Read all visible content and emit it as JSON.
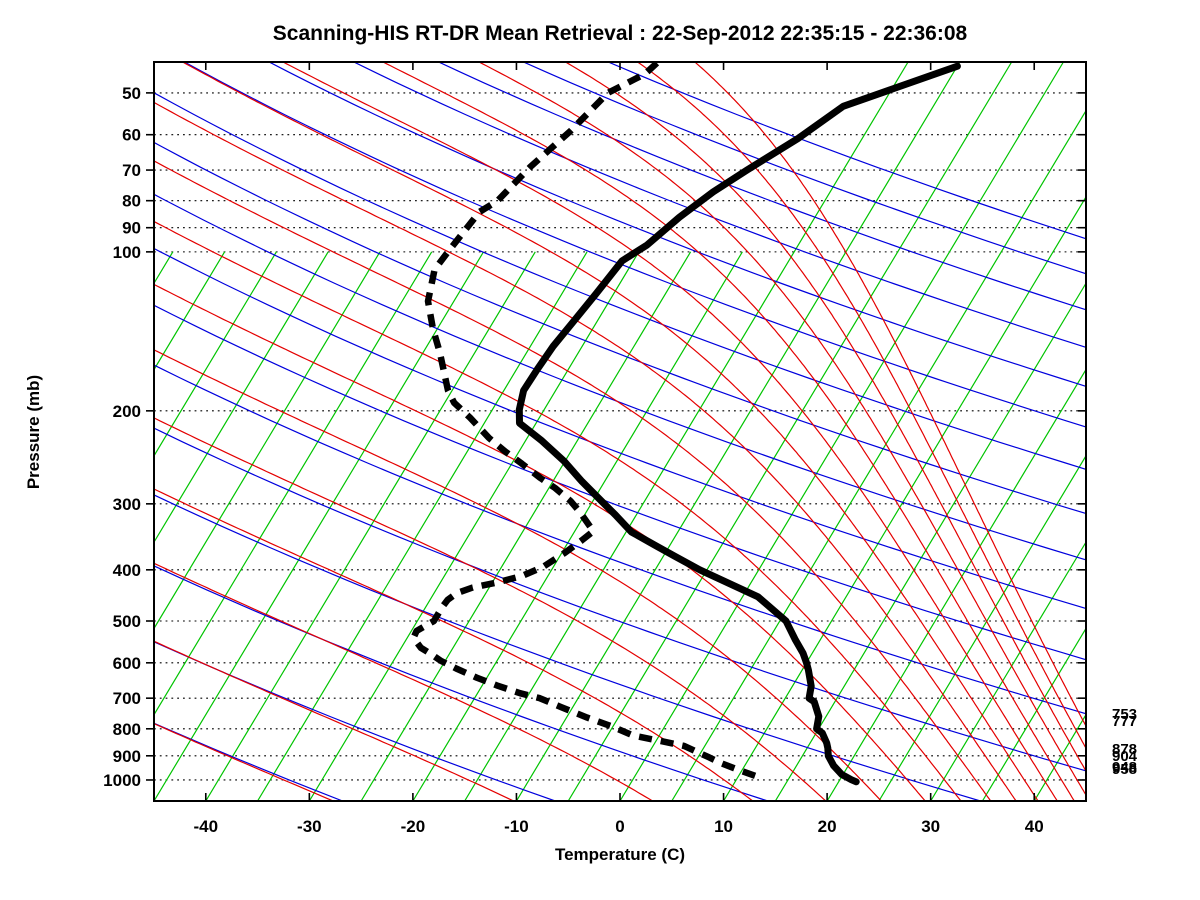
{
  "chart": {
    "title": "Scanning-HIS RT-DR Mean Retrieval : 22-Sep-2012 22:35:15 - 22:36:08",
    "xlabel": "Temperature (C)",
    "ylabel": "Pressure (mb)"
  },
  "chart_data": {
    "type": "line",
    "subtype": "skewt-log-p",
    "title": "Scanning-HIS RT-DR Mean Retrieval : 22-Sep-2012 22:35:15 - 22:36:08",
    "xlabel": "Temperature (C)",
    "ylabel": "Pressure (mb)",
    "xlim": [
      -45,
      45
    ],
    "pressure_top_mb": 43.7,
    "pressure_bottom_mb": 1096,
    "skew_c_per_decade": 30.6,
    "x_ticks": [
      -40,
      -30,
      -20,
      -10,
      0,
      10,
      20,
      30,
      40
    ],
    "y_ticks": [
      50,
      60,
      70,
      80,
      90,
      100,
      200,
      300,
      400,
      500,
      600,
      700,
      800,
      900,
      1000
    ],
    "isobars": [
      50,
      60,
      70,
      80,
      90,
      100,
      200,
      300,
      400,
      500,
      600,
      700,
      800,
      900,
      1000
    ],
    "isotherms": {
      "tmin": -90,
      "tmax": 45,
      "step": 5,
      "color": "#00c400",
      "full_height_above_t": -15,
      "clip_top_mb": 100
    },
    "dry_adiabats": {
      "theta_min": 240,
      "theta_max": 560,
      "step": 20,
      "color": "#0000dd"
    },
    "moist_adiabats": {
      "thetae_min": 240,
      "thetae_max": 560,
      "step": 20,
      "color": "#e40000"
    },
    "grid_color": "#000000",
    "profile_color": "#000000",
    "series": [
      {
        "name": "temperature",
        "style": "solid",
        "points_p_t": [
          [
            44.5,
            -10.0
          ],
          [
            53,
            -18.7
          ],
          [
            61,
            -21.2
          ],
          [
            70,
            -24.3
          ],
          [
            77,
            -26.3
          ],
          [
            86,
            -28.1
          ],
          [
            97,
            -29.6
          ],
          [
            104,
            -31.1
          ],
          [
            120,
            -31.7
          ],
          [
            136,
            -32.3
          ],
          [
            151,
            -32.8
          ],
          [
            167,
            -33.0
          ],
          [
            183,
            -33.1
          ],
          [
            199,
            -32.4
          ],
          [
            211,
            -31.6
          ],
          [
            228,
            -28.4
          ],
          [
            249,
            -25.1
          ],
          [
            272,
            -22.2
          ],
          [
            297,
            -19.1
          ],
          [
            315,
            -17.0
          ],
          [
            339,
            -14.5
          ],
          [
            361,
            -11.2
          ],
          [
            377,
            -8.9
          ],
          [
            400,
            -5.7
          ],
          [
            450,
            1.5
          ],
          [
            500,
            5.6
          ],
          [
            543,
            7.6
          ],
          [
            575,
            9.1
          ],
          [
            600,
            10.0
          ],
          [
            619,
            10.6
          ],
          [
            664,
            11.8
          ],
          [
            700,
            12.3
          ],
          [
            711,
            13.0
          ],
          [
            758,
            14.3
          ],
          [
            800,
            14.8
          ],
          [
            815,
            15.6
          ],
          [
            851,
            16.6
          ],
          [
            870,
            17.0
          ],
          [
            900,
            17.5
          ],
          [
            940,
            18.6
          ],
          [
            977,
            19.9
          ],
          [
            999,
            21.1
          ],
          [
            1008,
            21.7
          ]
        ]
      },
      {
        "name": "dewpoint",
        "style": "dashed",
        "points_p_t": [
          [
            43.9,
            -39.2
          ],
          [
            46,
            -39.7
          ],
          [
            50,
            -42.2
          ],
          [
            59,
            -43.6
          ],
          [
            69,
            -45.4
          ],
          [
            80,
            -46.6
          ],
          [
            84,
            -47.7
          ],
          [
            99,
            -48.4
          ],
          [
            108,
            -48.7
          ],
          [
            124,
            -47.5
          ],
          [
            140,
            -45.4
          ],
          [
            155,
            -43.4
          ],
          [
            183,
            -40.4
          ],
          [
            193,
            -39.1
          ],
          [
            206,
            -36.7
          ],
          [
            225,
            -33.7
          ],
          [
            239,
            -31.3
          ],
          [
            252,
            -29.0
          ],
          [
            268,
            -26.4
          ],
          [
            280,
            -24.4
          ],
          [
            296,
            -22.2
          ],
          [
            310,
            -20.7
          ],
          [
            330,
            -18.9
          ],
          [
            338,
            -18.2
          ],
          [
            352,
            -18.8
          ],
          [
            371,
            -19.7
          ],
          [
            395,
            -21.0
          ],
          [
            411,
            -22.5
          ],
          [
            423,
            -24.6
          ],
          [
            432,
            -26.6
          ],
          [
            443,
            -27.8
          ],
          [
            456,
            -28.3
          ],
          [
            471,
            -28.4
          ],
          [
            500,
            -28.4
          ],
          [
            522,
            -29.5
          ],
          [
            538,
            -29.4
          ],
          [
            562,
            -28.1
          ],
          [
            577,
            -26.8
          ],
          [
            595,
            -25.4
          ],
          [
            615,
            -23.5
          ],
          [
            640,
            -21.0
          ],
          [
            662,
            -18.6
          ],
          [
            685,
            -15.9
          ],
          [
            700,
            -13.7
          ],
          [
            727,
            -11.2
          ],
          [
            762,
            -8.0
          ],
          [
            794,
            -4.9
          ],
          [
            824,
            -2.5
          ],
          [
            844,
            0.5
          ],
          [
            862,
            3.0
          ],
          [
            905,
            6.0
          ],
          [
            931,
            7.7
          ],
          [
            958,
            9.7
          ],
          [
            982,
            11.6
          ]
        ]
      }
    ],
    "side_pressure_labels": [
      "753",
      "777",
      "878",
      "904",
      "948",
      "958"
    ],
    "legend": "none",
    "grid": "dotted horizontal isobars"
  }
}
